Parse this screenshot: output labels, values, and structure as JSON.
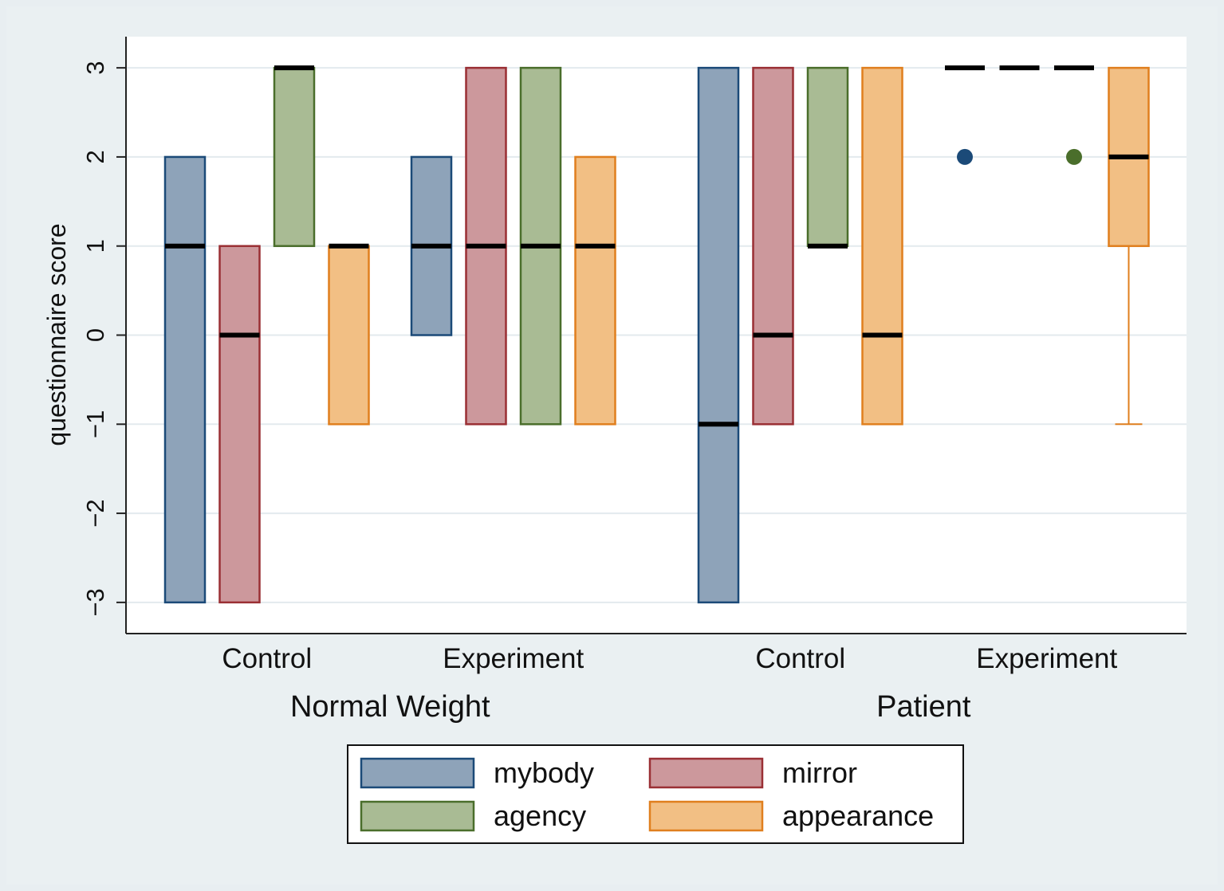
{
  "chart_data": {
    "type": "boxplot",
    "ylabel": "questionnaire score",
    "xlabel": "",
    "ylim": [
      -3.35,
      3.35
    ],
    "yticks": [
      3,
      2,
      1,
      0,
      -1,
      -2,
      -3
    ],
    "ytick_labels": [
      "3",
      "2",
      "1",
      "0",
      "−1",
      "−2",
      "−3"
    ],
    "grid": true,
    "legend_position": "bottom",
    "series": [
      {
        "name": "mybody",
        "color": "#8ea3b9",
        "edge": "#1b4a78"
      },
      {
        "name": "mirror",
        "color": "#cc989c",
        "edge": "#9a2f34"
      },
      {
        "name": "agency",
        "color": "#a9bb94",
        "edge": "#4a6e2b"
      },
      {
        "name": "appearance",
        "color": "#f2bf84",
        "edge": "#e07f1e"
      }
    ],
    "groups": [
      {
        "outer": "Normal Weight",
        "subgroups": [
          {
            "label": "Control",
            "boxes": [
              {
                "series": "mybody",
                "q1": -3,
                "median": 1,
                "q3": 2
              },
              {
                "series": "mirror",
                "q1": -3,
                "median": 0,
                "q3": 1
              },
              {
                "series": "agency",
                "q1": 1,
                "median": 3,
                "q3": 3
              },
              {
                "series": "appearance",
                "q1": -1,
                "median": 1,
                "q3": 1
              }
            ]
          },
          {
            "label": "Experiment",
            "boxes": [
              {
                "series": "mybody",
                "q1": 0,
                "median": 1,
                "q3": 2
              },
              {
                "series": "mirror",
                "q1": -1,
                "median": 1,
                "q3": 3
              },
              {
                "series": "agency",
                "q1": -1,
                "median": 1,
                "q3": 3
              },
              {
                "series": "appearance",
                "q1": -1,
                "median": 1,
                "q3": 2
              }
            ]
          }
        ]
      },
      {
        "outer": "Patient",
        "subgroups": [
          {
            "label": "Control",
            "boxes": [
              {
                "series": "mybody",
                "q1": -3,
                "median": -1,
                "q3": 3
              },
              {
                "series": "mirror",
                "q1": -1,
                "median": 0,
                "q3": 3
              },
              {
                "series": "agency",
                "q1": 1,
                "median": 1,
                "q3": 3
              },
              {
                "series": "appearance",
                "q1": -1,
                "median": 0,
                "q3": 3
              }
            ]
          },
          {
            "label": "Experiment",
            "boxes": [
              {
                "series": "mybody",
                "q1": 3,
                "median": 3,
                "q3": 3,
                "outliers": [
                  2
                ]
              },
              {
                "series": "mirror",
                "q1": 3,
                "median": 3,
                "q3": 3
              },
              {
                "series": "agency",
                "q1": 3,
                "median": 3,
                "q3": 3,
                "outliers": [
                  2
                ]
              },
              {
                "series": "appearance",
                "q1": 1,
                "median": 2,
                "q3": 3,
                "whisker_low": -1
              }
            ]
          }
        ]
      }
    ]
  }
}
